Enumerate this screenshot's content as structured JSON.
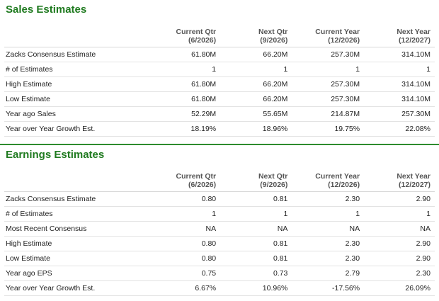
{
  "sales": {
    "title": "Sales Estimates",
    "headers": [
      {
        "l1": "Current Qtr",
        "l2": "(6/2026)"
      },
      {
        "l1": "Next Qtr",
        "l2": "(9/2026)"
      },
      {
        "l1": "Current Year",
        "l2": "(12/2026)"
      },
      {
        "l1": "Next Year",
        "l2": "(12/2027)"
      }
    ],
    "rows": [
      {
        "label": "Zacks Consensus Estimate",
        "v": [
          "61.80M",
          "66.20M",
          "257.30M",
          "314.10M"
        ]
      },
      {
        "label": "# of Estimates",
        "v": [
          "1",
          "1",
          "1",
          "1"
        ]
      },
      {
        "label": "High Estimate",
        "v": [
          "61.80M",
          "66.20M",
          "257.30M",
          "314.10M"
        ]
      },
      {
        "label": "Low Estimate",
        "v": [
          "61.80M",
          "66.20M",
          "257.30M",
          "314.10M"
        ]
      },
      {
        "label": "Year ago Sales",
        "v": [
          "52.29M",
          "55.65M",
          "214.87M",
          "257.30M"
        ]
      },
      {
        "label": "Year over Year Growth Est.",
        "v": [
          "18.19%",
          "18.96%",
          "19.75%",
          "22.08%"
        ]
      }
    ]
  },
  "earnings": {
    "title": "Earnings Estimates",
    "headers": [
      {
        "l1": "Current Qtr",
        "l2": "(6/2026)"
      },
      {
        "l1": "Next Qtr",
        "l2": "(9/2026)"
      },
      {
        "l1": "Current Year",
        "l2": "(12/2026)"
      },
      {
        "l1": "Next Year",
        "l2": "(12/2027)"
      }
    ],
    "rows": [
      {
        "label": "Zacks Consensus Estimate",
        "v": [
          "0.80",
          "0.81",
          "2.30",
          "2.90"
        ]
      },
      {
        "label": "# of Estimates",
        "v": [
          "1",
          "1",
          "1",
          "1"
        ]
      },
      {
        "label": "Most Recent Consensus",
        "v": [
          "NA",
          "NA",
          "NA",
          "NA"
        ]
      },
      {
        "label": "High Estimate",
        "v": [
          "0.80",
          "0.81",
          "2.30",
          "2.90"
        ]
      },
      {
        "label": "Low Estimate",
        "v": [
          "0.80",
          "0.81",
          "2.30",
          "2.90"
        ]
      },
      {
        "label": "Year ago EPS",
        "v": [
          "0.75",
          "0.73",
          "2.79",
          "2.30"
        ]
      },
      {
        "label": "Year over Year Growth Est.",
        "v": [
          "6.67%",
          "10.96%",
          "-17.56%",
          "26.09%"
        ]
      }
    ]
  },
  "colors": {
    "section_title": "#1f7a1f",
    "divider": "#2e8b2e",
    "row_border": "#e3e3e3"
  }
}
